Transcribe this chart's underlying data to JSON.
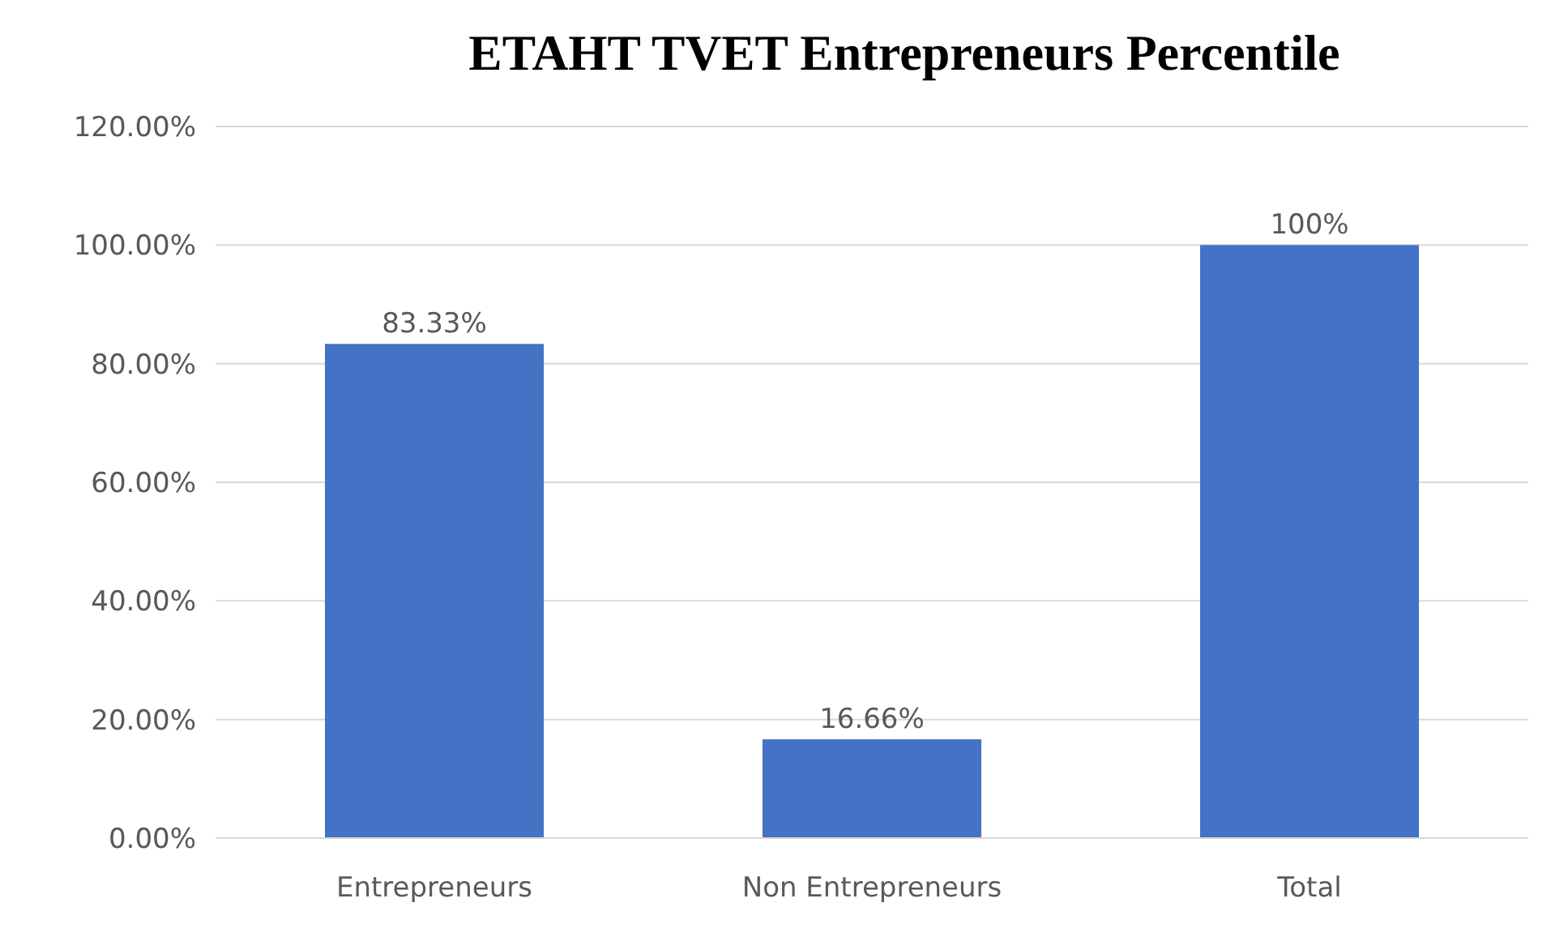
{
  "chart_data": {
    "type": "bar",
    "title": "ETAHT TVET Entrepreneurs Percentile",
    "categories": [
      "Entrepreneurs",
      "Non Entrepreneurs",
      "Total"
    ],
    "values": [
      83.33,
      16.66,
      100
    ],
    "value_labels": [
      "83.33%",
      "16.66%",
      "100%"
    ],
    "color": "#4472c4",
    "ylim": [
      0,
      120
    ],
    "yticks": [
      {
        "value": 0,
        "label": "0.00%"
      },
      {
        "value": 20,
        "label": "20.00%"
      },
      {
        "value": 40,
        "label": "40.00%"
      },
      {
        "value": 60,
        "label": "60.00%"
      },
      {
        "value": 80,
        "label": "80.00%"
      },
      {
        "value": 100,
        "label": "100.00%"
      },
      {
        "value": 120,
        "label": "120.00%"
      }
    ],
    "grid": "y"
  }
}
